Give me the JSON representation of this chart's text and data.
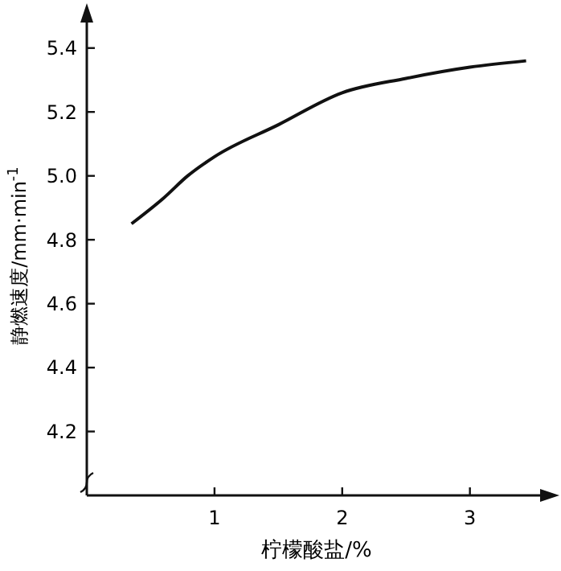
{
  "chart_data": {
    "type": "line",
    "xlabel": "柠檬酸盐/%",
    "ylabel": "静燃速度/mm·min$^{-1}$",
    "xlim": [
      0,
      3.6
    ],
    "ylim": [
      4.0,
      5.5
    ],
    "xticks": [
      1,
      2,
      3
    ],
    "yticks": [
      {
        "value": 4.2,
        "label": "4.2"
      },
      {
        "value": 4.4,
        "label": "4.4"
      },
      {
        "value": 4.6,
        "label": "4.6"
      },
      {
        "value": 4.8,
        "label": "4.8"
      },
      {
        "value": 5.0,
        "label": "5.0"
      },
      {
        "value": 5.2,
        "label": "5.2"
      },
      {
        "value": 5.4,
        "label": "5.4"
      }
    ],
    "grid": false,
    "marker": "none",
    "line_style": "solid",
    "series": [
      {
        "color": "#111111",
        "x": [
          0.35,
          0.6,
          0.79,
          1,
          1.5,
          2,
          2.5,
          3,
          3.44
        ],
        "values": [
          4.85,
          4.93,
          5.0,
          5.06,
          5.16,
          5.26,
          5.305,
          5.34,
          5.36
        ]
      }
    ]
  }
}
